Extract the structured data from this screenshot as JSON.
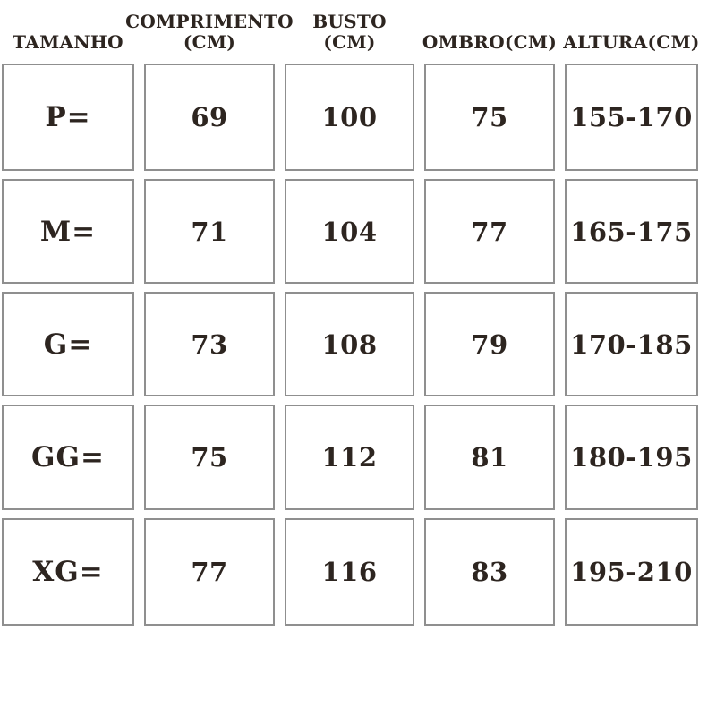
{
  "style": {
    "text_color": "#2d2520",
    "border_color": "#8f8f8f",
    "cell_background": "#ffffff",
    "page_background": "#ffffff"
  },
  "chart_data": {
    "type": "table",
    "columns": [
      "TAMANHO",
      "COMPRIMENTO (CM)",
      "BUSTO (CM)",
      "OMBRO(CM)",
      "ALTURA(CM)"
    ],
    "rows": [
      [
        "P=",
        "69",
        "100",
        "75",
        "155-170"
      ],
      [
        "M=",
        "71",
        "104",
        "77",
        "165-175"
      ],
      [
        "G=",
        "73",
        "108",
        "79",
        "170-185"
      ],
      [
        "GG=",
        "75",
        "112",
        "81",
        "180-195"
      ],
      [
        "XG=",
        "77",
        "116",
        "83",
        "195-210"
      ]
    ]
  }
}
